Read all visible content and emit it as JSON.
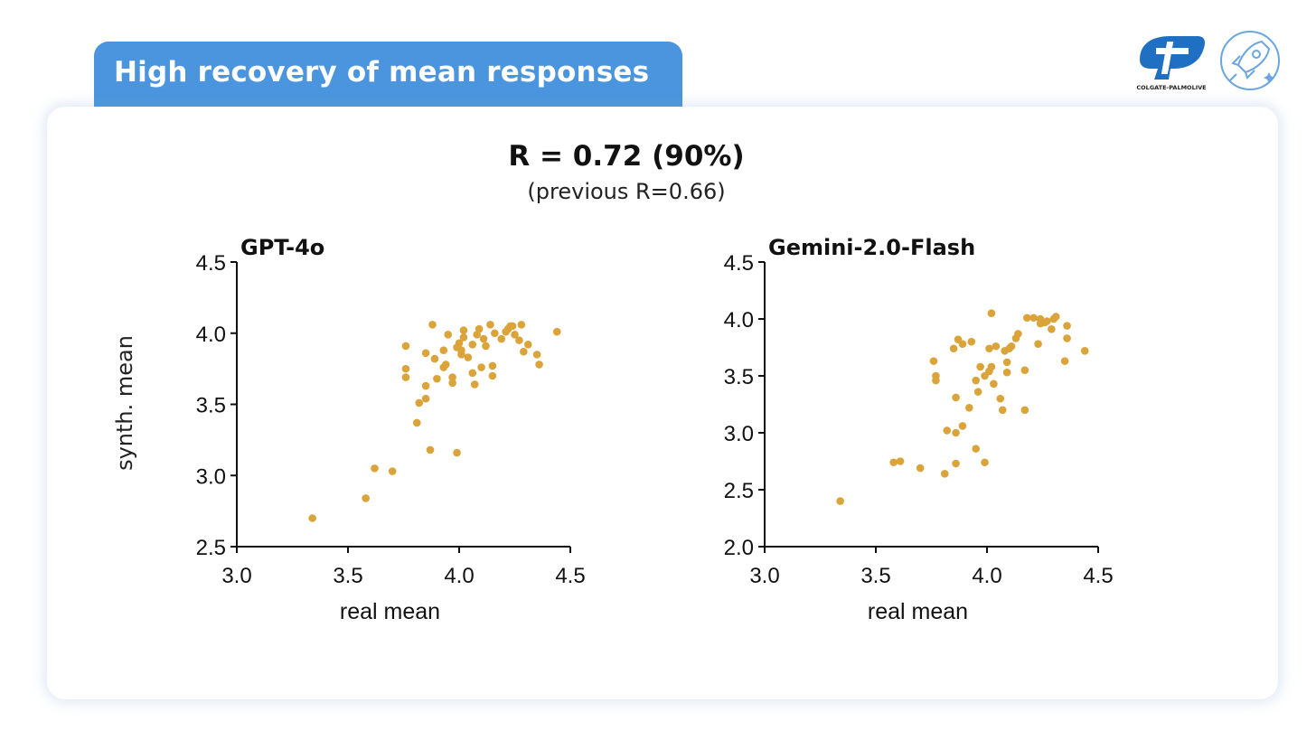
{
  "slide": {
    "title": "High recovery of mean responses",
    "headline": "R = 0.72 (90%)",
    "subheadline": "(previous R=0.66)",
    "shared_ylabel": "synth. mean",
    "logos": {
      "colgate_text": "COLGATE-PALMOLIVE"
    }
  },
  "colors": {
    "title_bg": "#4a95de",
    "point": "#dba43a",
    "axis": "#111111",
    "logo_blue": "#1f6fc2"
  },
  "icons": {
    "brand_logo": "colgate-palmolive-logo-icon",
    "rocket_logo": "rocket-icon"
  },
  "chart_data": [
    {
      "type": "scatter",
      "title": "GPT-4o",
      "xlabel": "real mean",
      "ylabel": "synth. mean",
      "xlim": [
        3.0,
        4.5
      ],
      "ylim": [
        2.5,
        4.5
      ],
      "xticks": [
        "3.0",
        "3.5",
        "4.0",
        "4.5"
      ],
      "yticks": [
        "2.5",
        "3.0",
        "3.5",
        "4.0",
        "4.5"
      ],
      "points": [
        [
          3.34,
          2.7
        ],
        [
          3.58,
          2.84
        ],
        [
          3.62,
          3.05
        ],
        [
          3.7,
          3.03
        ],
        [
          3.87,
          3.18
        ],
        [
          3.99,
          3.16
        ],
        [
          3.81,
          3.37
        ],
        [
          3.82,
          3.51
        ],
        [
          3.85,
          3.54
        ],
        [
          3.85,
          3.63
        ],
        [
          3.76,
          3.69
        ],
        [
          3.76,
          3.75
        ],
        [
          3.76,
          3.91
        ],
        [
          3.88,
          4.06
        ],
        [
          3.85,
          3.86
        ],
        [
          3.89,
          3.82
        ],
        [
          3.9,
          3.68
        ],
        [
          3.93,
          3.76
        ],
        [
          3.94,
          3.78
        ],
        [
          3.93,
          3.88
        ],
        [
          3.95,
          3.99
        ],
        [
          3.97,
          3.69
        ],
        [
          3.97,
          3.65
        ],
        [
          3.99,
          3.9
        ],
        [
          4.0,
          3.93
        ],
        [
          4.01,
          3.85
        ],
        [
          4.01,
          3.88
        ],
        [
          4.02,
          4.02
        ],
        [
          4.02,
          3.97
        ],
        [
          4.04,
          3.83
        ],
        [
          4.06,
          3.72
        ],
        [
          4.07,
          3.64
        ],
        [
          4.06,
          3.92
        ],
        [
          4.08,
          3.99
        ],
        [
          4.09,
          4.03
        ],
        [
          4.1,
          3.76
        ],
        [
          4.11,
          3.96
        ],
        [
          4.12,
          3.91
        ],
        [
          4.14,
          4.06
        ],
        [
          4.15,
          3.7
        ],
        [
          4.15,
          3.77
        ],
        [
          4.16,
          4.0
        ],
        [
          4.19,
          3.96
        ],
        [
          4.21,
          4.01
        ],
        [
          4.22,
          4.03
        ],
        [
          4.23,
          4.05
        ],
        [
          4.24,
          4.05
        ],
        [
          4.25,
          3.99
        ],
        [
          4.27,
          3.95
        ],
        [
          4.28,
          4.06
        ],
        [
          4.29,
          3.87
        ],
        [
          4.31,
          3.92
        ],
        [
          4.35,
          3.85
        ],
        [
          4.36,
          3.78
        ],
        [
          4.44,
          4.01
        ]
      ]
    },
    {
      "type": "scatter",
      "title": "Gemini-2.0-Flash",
      "xlabel": "real mean",
      "ylabel": "",
      "xlim": [
        3.0,
        4.5
      ],
      "ylim": [
        2.0,
        4.5
      ],
      "xticks": [
        "3.0",
        "3.5",
        "4.0",
        "4.5"
      ],
      "yticks": [
        "2.0",
        "2.5",
        "3.0",
        "3.5",
        "4.0",
        "4.5"
      ],
      "points": [
        [
          3.34,
          2.4
        ],
        [
          3.58,
          2.74
        ],
        [
          3.61,
          2.75
        ],
        [
          3.7,
          2.69
        ],
        [
          3.81,
          2.64
        ],
        [
          3.86,
          2.73
        ],
        [
          3.82,
          3.02
        ],
        [
          3.86,
          3.0
        ],
        [
          3.89,
          3.06
        ],
        [
          3.95,
          2.86
        ],
        [
          3.99,
          2.74
        ],
        [
          3.92,
          3.22
        ],
        [
          3.86,
          3.31
        ],
        [
          3.77,
          3.46
        ],
        [
          3.77,
          3.5
        ],
        [
          3.76,
          3.63
        ],
        [
          3.85,
          3.74
        ],
        [
          3.87,
          3.82
        ],
        [
          3.89,
          3.78
        ],
        [
          3.93,
          3.8
        ],
        [
          3.95,
          3.46
        ],
        [
          3.96,
          3.36
        ],
        [
          3.97,
          3.58
        ],
        [
          3.99,
          3.5
        ],
        [
          4.01,
          3.54
        ],
        [
          4.01,
          3.74
        ],
        [
          4.02,
          3.58
        ],
        [
          4.03,
          3.43
        ],
        [
          4.04,
          3.76
        ],
        [
          4.06,
          3.3
        ],
        [
          4.07,
          3.2
        ],
        [
          4.08,
          3.72
        ],
        [
          4.09,
          3.62
        ],
        [
          4.09,
          3.53
        ],
        [
          4.1,
          3.74
        ],
        [
          4.11,
          3.76
        ],
        [
          4.13,
          3.83
        ],
        [
          4.14,
          3.87
        ],
        [
          4.17,
          3.55
        ],
        [
          4.17,
          3.2
        ],
        [
          4.18,
          4.01
        ],
        [
          4.21,
          4.01
        ],
        [
          4.23,
          3.78
        ],
        [
          4.24,
          3.96
        ],
        [
          4.24,
          4.0
        ],
        [
          4.26,
          3.97
        ],
        [
          4.27,
          3.98
        ],
        [
          4.29,
          3.91
        ],
        [
          4.3,
          4.0
        ],
        [
          4.31,
          4.02
        ],
        [
          4.35,
          3.63
        ],
        [
          4.36,
          3.83
        ],
        [
          4.36,
          3.94
        ],
        [
          4.44,
          3.72
        ],
        [
          4.02,
          4.05
        ]
      ]
    }
  ]
}
